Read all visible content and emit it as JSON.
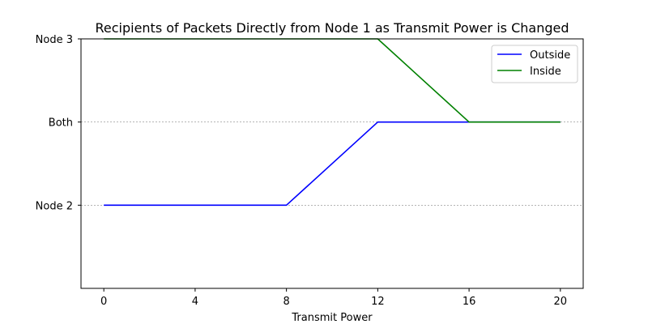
{
  "chart_data": {
    "type": "line",
    "title": "Recipients of Packets Directly from Node 1 as Transmit Power is Changed",
    "xlabel": "Transmit Power",
    "ylabel": "",
    "x": [
      0,
      4,
      8,
      12,
      16,
      20
    ],
    "x_ticks": [
      "0",
      "4",
      "8",
      "12",
      "16",
      "20"
    ],
    "xlim": [
      -1,
      21
    ],
    "y_categories": [
      "Node 2",
      "Both",
      "Node 3"
    ],
    "y_ticks": [
      "Node 2",
      "Both",
      "Node 3"
    ],
    "ylim": [
      -1,
      2
    ],
    "grid": "horizontal dashed",
    "legend_position": "upper right",
    "series": [
      {
        "name": "Outside",
        "color": "#0000ff",
        "values": [
          "Node 2",
          "Node 2",
          "Node 2",
          "Both",
          "Both",
          "Both"
        ]
      },
      {
        "name": "Inside",
        "color": "#008000",
        "values": [
          "Node 3",
          "Node 3",
          "Node 3",
          "Node 3",
          "Both",
          "Both"
        ]
      }
    ]
  }
}
